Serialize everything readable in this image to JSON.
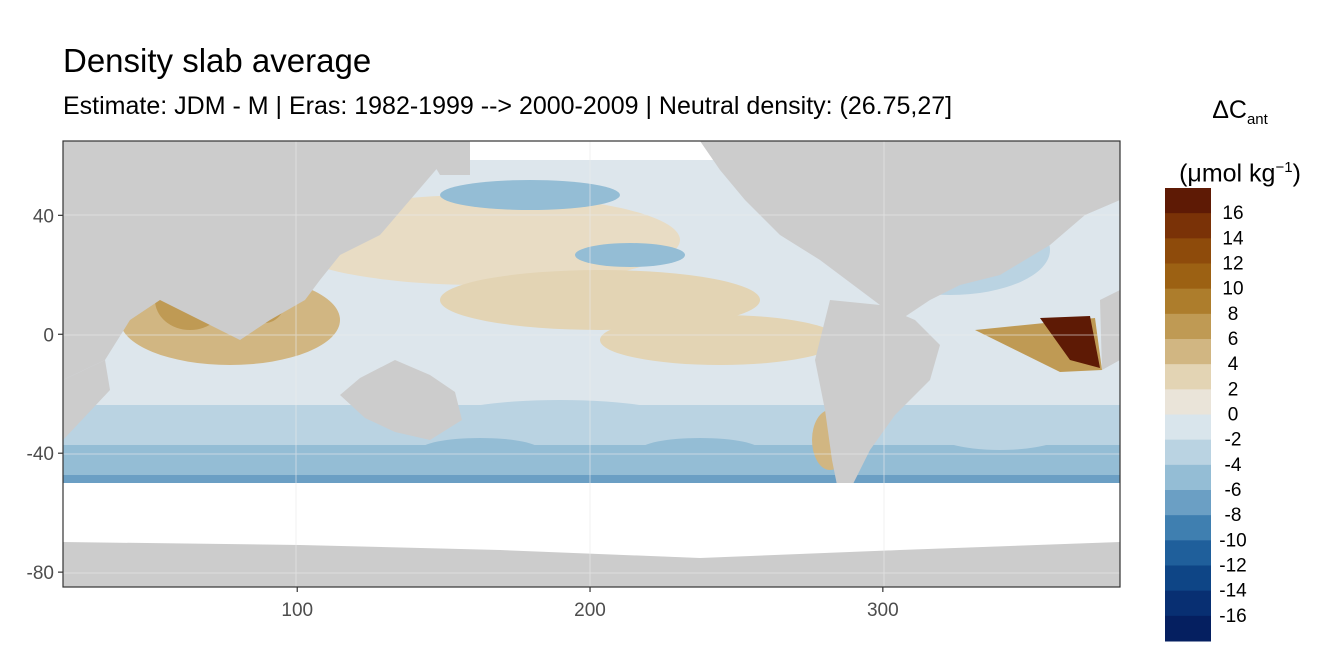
{
  "title": "Density slab average",
  "subtitle": "Estimate: JDM - M | Eras: 1982-1999 --> 2000-2009 | Neutral density: (26.75,27]",
  "legend": {
    "title_main": "ΔC",
    "title_sub": "ant",
    "unit_prefix": "(μmol kg",
    "unit_sup": "−1",
    "unit_suffix": ")",
    "labels": [
      "16",
      "14",
      "12",
      "10",
      "8",
      "6",
      "4",
      "2",
      "0",
      "-2",
      "-4",
      "-6",
      "-8",
      "-10",
      "-12",
      "-14",
      "-16"
    ],
    "colors": [
      "#5e1a05",
      "#7a3207",
      "#8e4b0b",
      "#9c6113",
      "#ad7d2c",
      "#bf9a54",
      "#d1b682",
      "#e3d4b4",
      "#eae4d9",
      "#d9e5ec",
      "#bad3e2",
      "#94bdd5",
      "#6b9fc4",
      "#3f7fb0",
      "#1f5f9b",
      "#0e4586",
      "#082f72",
      "#051f60"
    ]
  },
  "axes": {
    "x_ticks": [
      "100",
      "200",
      "300"
    ],
    "y_ticks": [
      "40",
      "0",
      "-40",
      "-80"
    ],
    "xlim": [
      20,
      381
    ],
    "ylim": [
      -85,
      65
    ]
  }
}
